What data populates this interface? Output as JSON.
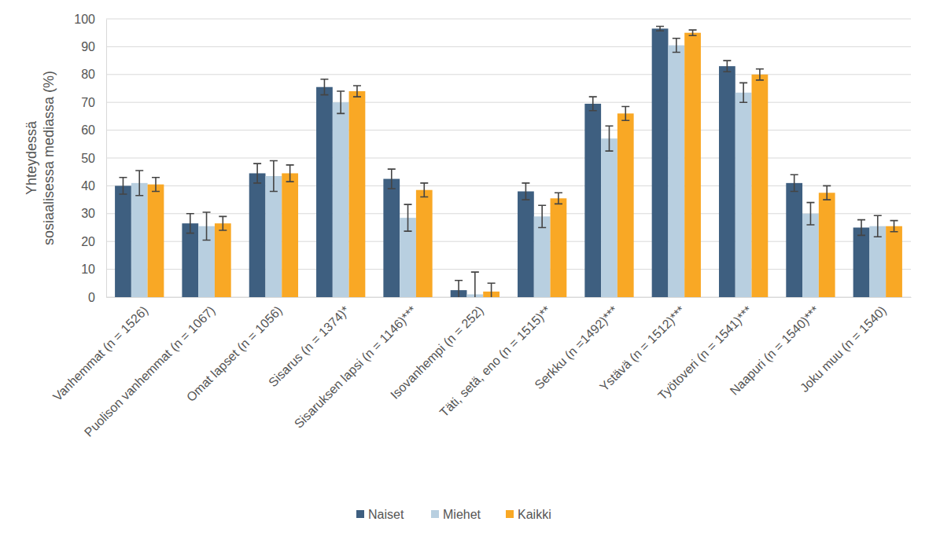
{
  "chart_data": {
    "type": "bar",
    "y_label": "Yhteydessä sosiaalisessa mediassa (%)",
    "categories": [
      "Vanhemmat (n = 1526)",
      "Puolison vanhemmat (n = 1067)",
      "Omat lapset (n = 1056)",
      "Sisarus (n = 1374)*",
      "Sisaruksen lapsi (n = 1146)***",
      "Isovanhempi (n = 252)",
      "Täti, setä, eno (n = 1515)**",
      "Serkku (n =1492)***",
      "Ystävä (n = 1512)***",
      "Työtoveri (n = 1541)***",
      "Naapuri (n = 1540)***",
      "Joku muu (n = 1540)"
    ],
    "series": [
      {
        "name": "Naiset",
        "color": "#3e5f80",
        "values": [
          40,
          26.5,
          44.5,
          75.5,
          42.5,
          2.5,
          38,
          69.5,
          96.5,
          83,
          41,
          25
        ],
        "errors": [
          3,
          3.5,
          3.5,
          2.8,
          3.5,
          3.5,
          3,
          2.5,
          0.8,
          2,
          3,
          2.8
        ]
      },
      {
        "name": "Miehet",
        "color": "#b8cfe0",
        "values": [
          41,
          25.5,
          43.5,
          70,
          28.5,
          1,
          29,
          57,
          90.5,
          73.5,
          30,
          25.5
        ],
        "errors": [
          4.5,
          5,
          5.5,
          4,
          4.8,
          8,
          4,
          4.5,
          2.5,
          3.5,
          4,
          3.8
        ]
      },
      {
        "name": "Kaikki",
        "color": "#f9a825",
        "values": [
          40.5,
          26.5,
          44.5,
          74,
          38.5,
          2,
          35.5,
          66,
          95,
          80,
          37.5,
          25.5
        ],
        "errors": [
          2.5,
          2.5,
          3,
          2,
          2.5,
          3,
          2,
          2.5,
          1,
          2,
          2.5,
          2
        ]
      }
    ],
    "ylim": [
      0,
      100
    ],
    "yticks": [
      0,
      10,
      20,
      30,
      40,
      50,
      60,
      70,
      80,
      90,
      100
    ],
    "grid": true,
    "legend": "bottom"
  }
}
